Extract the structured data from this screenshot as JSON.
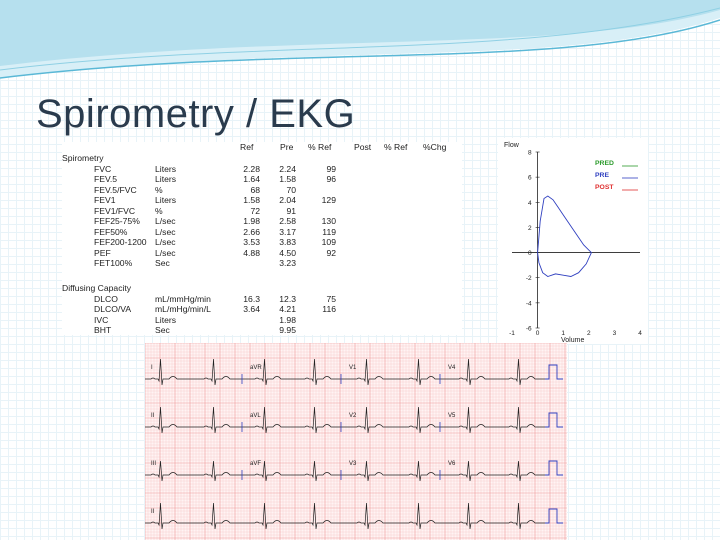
{
  "slide": {
    "title": "Spirometry / EKG",
    "accent_color": "#5ab8d6"
  },
  "spirometry": {
    "headers": [
      "Ref",
      "Pre",
      "% Ref",
      "Post",
      "% Ref",
      "%Chg"
    ],
    "section1": "Spirometry",
    "rows": [
      {
        "name": "FVC",
        "unit": "Liters",
        "ref": "2.28",
        "pre": "2.24",
        "pref": "99"
      },
      {
        "name": "FEV.5",
        "unit": "Liters",
        "ref": "1.64",
        "pre": "1.58",
        "pref": "96"
      },
      {
        "name": "FEV.5/FVC",
        "unit": "%",
        "ref": "68",
        "pre": "70",
        "pref": ""
      },
      {
        "name": "FEV1",
        "unit": "Liters",
        "ref": "1.58",
        "pre": "2.04",
        "pref": "129"
      },
      {
        "name": "FEV1/FVC",
        "unit": "%",
        "ref": "72",
        "pre": "91",
        "pref": ""
      },
      {
        "name": "FEF25-75%",
        "unit": "L/sec",
        "ref": "1.98",
        "pre": "2.58",
        "pref": "130"
      },
      {
        "name": "FEF50%",
        "unit": "L/sec",
        "ref": "2.66",
        "pre": "3.17",
        "pref": "119"
      },
      {
        "name": "FEF200-1200",
        "unit": "L/sec",
        "ref": "3.53",
        "pre": "3.83",
        "pref": "109"
      },
      {
        "name": "PEF",
        "unit": "L/sec",
        "ref": "4.88",
        "pre": "4.50",
        "pref": "92"
      },
      {
        "name": "FET100%",
        "unit": "Sec",
        "ref": "",
        "pre": "3.23",
        "pref": ""
      }
    ],
    "section2": "Diffusing Capacity",
    "rows2": [
      {
        "name": "DLCO",
        "unit": "mL/mmHg/min",
        "ref": "16.3",
        "pre": "12.3",
        "pref": "75"
      },
      {
        "name": "DLCO/VA",
        "unit": "mL/mHg/min/L",
        "ref": "3.64",
        "pre": "4.21",
        "pref": "116"
      },
      {
        "name": "IVC",
        "unit": "Liters",
        "ref": "",
        "pre": "1.98",
        "pref": ""
      },
      {
        "name": "BHT",
        "unit": "Sec",
        "ref": "",
        "pre": "9.95",
        "pref": ""
      }
    ]
  },
  "chart_data": {
    "type": "line",
    "ylabel": "Flow",
    "xlabel": "Volume",
    "xlim": [
      -1,
      4
    ],
    "ylim": [
      -6,
      8
    ],
    "x_ticks": [
      "-1",
      "0",
      "1",
      "2",
      "3",
      "4"
    ],
    "y_ticks": [
      "8",
      "6",
      "4",
      "2",
      "0",
      "-2",
      "-4",
      "-6"
    ],
    "legend": [
      {
        "label": "PRED",
        "color": "#2a9a2a"
      },
      {
        "label": "PRE",
        "color": "#3040c0"
      },
      {
        "label": "POST",
        "color": "#e03030"
      }
    ],
    "series": [
      {
        "name": "PRE",
        "x": [
          0.0,
          0.1,
          0.25,
          0.4,
          0.6,
          0.8,
          1.0,
          1.2,
          1.4,
          1.6,
          1.8,
          2.0,
          2.1,
          1.9,
          1.6,
          1.3,
          1.0,
          0.7,
          0.4,
          0.2,
          0.05,
          0.0
        ],
        "y": [
          0.0,
          2.5,
          4.3,
          4.5,
          4.2,
          3.6,
          3.0,
          2.4,
          1.8,
          1.2,
          0.6,
          0.2,
          0.0,
          -0.9,
          -1.6,
          -1.9,
          -1.8,
          -1.7,
          -1.9,
          -1.6,
          -0.8,
          0.0
        ]
      }
    ]
  },
  "ekg": {
    "leads": [
      [
        "I",
        "aVR",
        "V1",
        "V4"
      ],
      [
        "II",
        "aVL",
        "V2",
        "V5"
      ],
      [
        "III",
        "aVF",
        "V3",
        "V6"
      ],
      [
        "II",
        "",
        "",
        ""
      ]
    ]
  }
}
